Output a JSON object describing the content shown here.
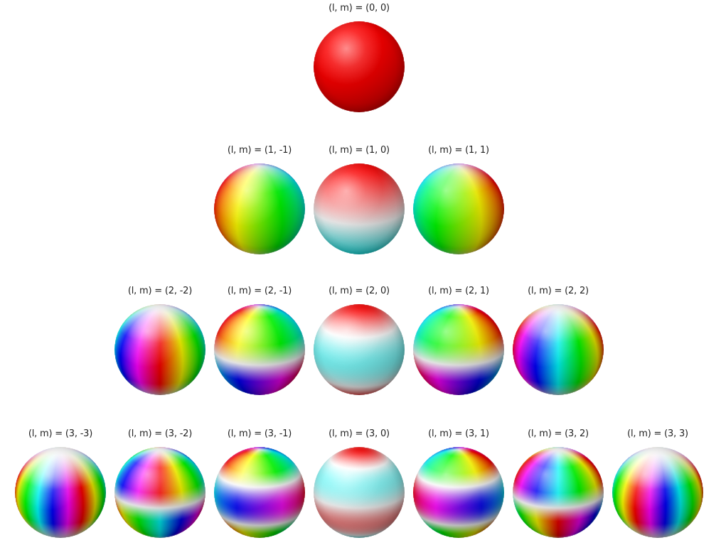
{
  "harmonics": [
    {
      "l": 0,
      "m": 0,
      "label": "(l, m) = (0, 0)"
    },
    {
      "l": 1,
      "m": -1,
      "label": "(l, m) = (1, -1)"
    },
    {
      "l": 1,
      "m": 0,
      "label": "(l, m) = (1, 0)"
    },
    {
      "l": 1,
      "m": 1,
      "label": "(l, m) = (1, 1)"
    },
    {
      "l": 2,
      "m": -2,
      "label": "(l, m) = (2, -2)"
    },
    {
      "l": 2,
      "m": -1,
      "label": "(l, m) = (2, -1)"
    },
    {
      "l": 2,
      "m": 0,
      "label": "(l, m) = (2, 0)"
    },
    {
      "l": 2,
      "m": 1,
      "label": "(l, m) = (2, 1)"
    },
    {
      "l": 2,
      "m": 2,
      "label": "(l, m) = (2, 2)"
    },
    {
      "l": 3,
      "m": -3,
      "label": "(l, m) = (3, -3)"
    },
    {
      "l": 3,
      "m": -2,
      "label": "(l, m) = (3, -2)"
    },
    {
      "l": 3,
      "m": -1,
      "label": "(l, m) = (3, -1)"
    },
    {
      "l": 3,
      "m": 0,
      "label": "(l, m) = (3, 0)"
    },
    {
      "l": 3,
      "m": 1,
      "label": "(l, m) = (3, 1)"
    },
    {
      "l": 3,
      "m": 2,
      "label": "(l, m) = (3, 2)"
    },
    {
      "l": 3,
      "m": 3,
      "label": "(l, m) = (3, 3)"
    }
  ],
  "colors": {
    "background": "#ffffff",
    "label_text": "#222222",
    "positive": "#ff0000",
    "neutral": "#ffffff",
    "negative": "#00ffff"
  }
}
